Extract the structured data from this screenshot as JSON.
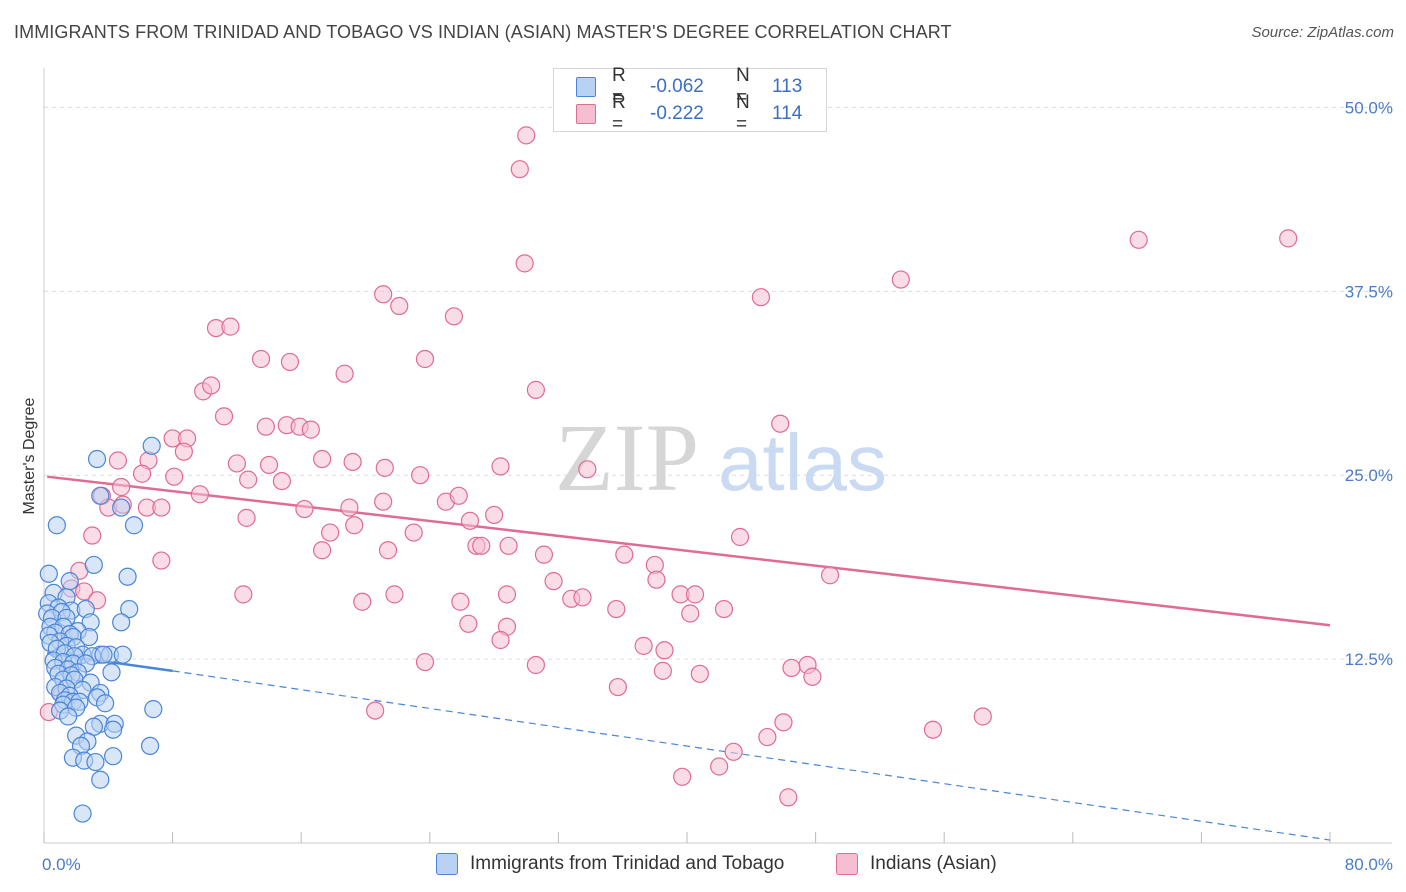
{
  "title": "IMMIGRANTS FROM TRINIDAD AND TOBAGO VS INDIAN (ASIAN) MASTER'S DEGREE CORRELATION CHART",
  "source": "Source: ZipAtlas.com",
  "watermark": {
    "zip": "ZIP",
    "atlas": "atlas"
  },
  "colors": {
    "blue": "#4a86d8",
    "blue_fill": "#b9d2f3",
    "pink": "#e06b93",
    "pink_fill": "#f5bfd1",
    "axis_text": "#4a7cc9",
    "grid": "#dddddd"
  },
  "legend": {
    "rows": [
      {
        "r_label": "R =",
        "r_value": "-0.062",
        "n_label": "N =",
        "n_value": "113"
      },
      {
        "r_label": "R =",
        "r_value": "-0.222",
        "n_label": "N =",
        "n_value": "114"
      }
    ]
  },
  "chart_data": {
    "type": "scatter",
    "title": "IMMIGRANTS FROM TRINIDAD AND TOBAGO VS INDIAN (ASIAN) MASTER'S DEGREE CORRELATION CHART",
    "xlabel": "",
    "ylabel": "Master's Degree",
    "xlim": [
      0,
      80
    ],
    "ylim": [
      0,
      50
    ],
    "x_tick_labels": [
      "0.0%",
      "80.0%"
    ],
    "y_ticks": [
      12.5,
      25.0,
      37.5,
      50.0
    ],
    "y_tick_labels": [
      "12.5%",
      "25.0%",
      "37.5%",
      "50.0%"
    ],
    "grid": true,
    "series": [
      {
        "name": "Immigrants from Trinidad and Tobago",
        "color": "blue",
        "trend": {
          "x1": 0.2,
          "y1": 12.9,
          "x2": 8.0,
          "y2": 11.7,
          "dash_to_x": 80.0,
          "dash_to_y": 0.2
        },
        "points": [
          [
            3.3,
            26.1
          ],
          [
            6.7,
            27.0
          ],
          [
            0.8,
            21.6
          ],
          [
            3.5,
            23.6
          ],
          [
            4.8,
            22.8
          ],
          [
            5.6,
            21.6
          ],
          [
            0.3,
            18.3
          ],
          [
            3.1,
            18.9
          ],
          [
            1.6,
            17.8
          ],
          [
            5.2,
            18.1
          ],
          [
            0.6,
            17.0
          ],
          [
            1.4,
            16.7
          ],
          [
            0.3,
            16.3
          ],
          [
            0.9,
            16.0
          ],
          [
            1.7,
            15.8
          ],
          [
            2.6,
            15.9
          ],
          [
            5.3,
            15.9
          ],
          [
            0.2,
            15.6
          ],
          [
            1.1,
            15.7
          ],
          [
            0.5,
            15.3
          ],
          [
            1.4,
            15.3
          ],
          [
            2.9,
            15.0
          ],
          [
            4.8,
            15.0
          ],
          [
            0.4,
            14.7
          ],
          [
            1.2,
            14.7
          ],
          [
            2.1,
            14.4
          ],
          [
            0.7,
            14.3
          ],
          [
            1.6,
            14.2
          ],
          [
            0.3,
            14.1
          ],
          [
            1.8,
            14.0
          ],
          [
            2.8,
            14.0
          ],
          [
            1.0,
            13.7
          ],
          [
            0.4,
            13.6
          ],
          [
            1.4,
            13.4
          ],
          [
            2.0,
            13.3
          ],
          [
            0.8,
            13.2
          ],
          [
            1.3,
            12.9
          ],
          [
            2.4,
            12.8
          ],
          [
            3.5,
            12.8
          ],
          [
            4.1,
            12.8
          ],
          [
            4.9,
            12.8
          ],
          [
            1.9,
            12.7
          ],
          [
            3.0,
            12.7
          ],
          [
            3.7,
            12.8
          ],
          [
            0.6,
            12.4
          ],
          [
            1.2,
            12.3
          ],
          [
            1.8,
            12.2
          ],
          [
            2.6,
            12.2
          ],
          [
            0.7,
            11.9
          ],
          [
            1.5,
            11.8
          ],
          [
            2.1,
            11.6
          ],
          [
            0.9,
            11.5
          ],
          [
            1.7,
            11.4
          ],
          [
            4.2,
            11.6
          ],
          [
            1.2,
            11.1
          ],
          [
            1.9,
            11.1
          ],
          [
            2.9,
            10.9
          ],
          [
            0.7,
            10.6
          ],
          [
            1.4,
            10.5
          ],
          [
            2.4,
            10.4
          ],
          [
            1.0,
            10.2
          ],
          [
            3.5,
            10.2
          ],
          [
            1.6,
            10.0
          ],
          [
            3.3,
            9.9
          ],
          [
            1.3,
            9.7
          ],
          [
            1.8,
            9.6
          ],
          [
            2.2,
            9.6
          ],
          [
            3.8,
            9.5
          ],
          [
            1.2,
            9.4
          ],
          [
            2.0,
            9.2
          ],
          [
            6.8,
            9.1
          ],
          [
            1.0,
            9.0
          ],
          [
            1.5,
            8.6
          ],
          [
            3.5,
            8.1
          ],
          [
            4.4,
            8.1
          ],
          [
            3.1,
            7.9
          ],
          [
            4.3,
            7.7
          ],
          [
            2.0,
            7.3
          ],
          [
            2.7,
            6.9
          ],
          [
            2.3,
            6.6
          ],
          [
            6.6,
            6.6
          ],
          [
            4.3,
            5.9
          ],
          [
            1.8,
            5.8
          ],
          [
            2.5,
            5.6
          ],
          [
            3.2,
            5.5
          ],
          [
            3.5,
            4.3
          ],
          [
            2.4,
            2.0
          ]
        ]
      },
      {
        "name": "Indians (Asian)",
        "color": "pink",
        "trend": {
          "x1": 0.2,
          "y1": 24.9,
          "x2": 80.0,
          "y2": 14.8
        },
        "points": [
          [
            30.0,
            48.1
          ],
          [
            29.6,
            45.8
          ],
          [
            68.1,
            41.0
          ],
          [
            77.4,
            41.1
          ],
          [
            29.9,
            39.4
          ],
          [
            53.3,
            38.3
          ],
          [
            21.1,
            37.3
          ],
          [
            22.1,
            36.5
          ],
          [
            25.5,
            35.8
          ],
          [
            10.7,
            35.0
          ],
          [
            11.6,
            35.1
          ],
          [
            13.5,
            32.9
          ],
          [
            15.3,
            32.7
          ],
          [
            23.7,
            32.9
          ],
          [
            18.7,
            31.9
          ],
          [
            9.9,
            30.7
          ],
          [
            10.4,
            31.1
          ],
          [
            30.6,
            30.8
          ],
          [
            11.2,
            29.0
          ],
          [
            13.8,
            28.3
          ],
          [
            15.1,
            28.4
          ],
          [
            15.9,
            28.3
          ],
          [
            16.6,
            28.1
          ],
          [
            45.8,
            28.5
          ],
          [
            8.0,
            27.5
          ],
          [
            8.9,
            27.5
          ],
          [
            44.6,
            37.1
          ],
          [
            8.7,
            26.6
          ],
          [
            4.6,
            26.0
          ],
          [
            6.5,
            26.0
          ],
          [
            12.0,
            25.8
          ],
          [
            14.0,
            25.7
          ],
          [
            17.3,
            26.1
          ],
          [
            19.2,
            25.9
          ],
          [
            21.2,
            25.5
          ],
          [
            28.4,
            25.6
          ],
          [
            33.8,
            25.4
          ],
          [
            6.1,
            25.1
          ],
          [
            8.1,
            24.9
          ],
          [
            12.7,
            24.7
          ],
          [
            14.8,
            24.6
          ],
          [
            23.4,
            25.0
          ],
          [
            4.8,
            24.2
          ],
          [
            9.7,
            23.7
          ],
          [
            3.6,
            23.6
          ],
          [
            4.0,
            22.8
          ],
          [
            4.9,
            23.0
          ],
          [
            6.4,
            22.8
          ],
          [
            7.3,
            22.8
          ],
          [
            16.2,
            22.7
          ],
          [
            19.0,
            22.8
          ],
          [
            21.1,
            23.2
          ],
          [
            25.0,
            23.2
          ],
          [
            25.8,
            23.6
          ],
          [
            28.0,
            22.3
          ],
          [
            12.6,
            22.1
          ],
          [
            26.5,
            21.9
          ],
          [
            19.3,
            21.6
          ],
          [
            17.8,
            21.1
          ],
          [
            23.0,
            21.1
          ],
          [
            3.0,
            20.9
          ],
          [
            43.3,
            20.8
          ],
          [
            26.9,
            20.2
          ],
          [
            27.2,
            20.2
          ],
          [
            28.9,
            20.2
          ],
          [
            21.4,
            19.9
          ],
          [
            17.3,
            19.9
          ],
          [
            31.1,
            19.6
          ],
          [
            36.1,
            19.6
          ],
          [
            7.3,
            19.2
          ],
          [
            38.0,
            18.9
          ],
          [
            2.2,
            18.5
          ],
          [
            48.9,
            18.2
          ],
          [
            31.7,
            17.8
          ],
          [
            38.1,
            17.9
          ],
          [
            1.7,
            17.3
          ],
          [
            2.5,
            17.1
          ],
          [
            12.4,
            16.9
          ],
          [
            21.8,
            16.9
          ],
          [
            28.8,
            16.9
          ],
          [
            32.8,
            16.6
          ],
          [
            33.5,
            16.7
          ],
          [
            39.6,
            16.9
          ],
          [
            40.5,
            16.9
          ],
          [
            3.3,
            16.5
          ],
          [
            19.8,
            16.4
          ],
          [
            25.9,
            16.4
          ],
          [
            42.3,
            15.9
          ],
          [
            35.6,
            15.9
          ],
          [
            40.2,
            15.6
          ],
          [
            26.4,
            14.9
          ],
          [
            28.8,
            14.7
          ],
          [
            28.4,
            13.8
          ],
          [
            37.3,
            13.4
          ],
          [
            38.6,
            13.1
          ],
          [
            23.7,
            12.3
          ],
          [
            30.6,
            12.1
          ],
          [
            47.5,
            12.1
          ],
          [
            46.5,
            11.9
          ],
          [
            38.5,
            11.7
          ],
          [
            40.8,
            11.5
          ],
          [
            47.8,
            11.3
          ],
          [
            35.7,
            10.6
          ],
          [
            1.1,
            10.1
          ],
          [
            0.3,
            8.9
          ],
          [
            20.6,
            9.0
          ],
          [
            46.0,
            8.2
          ],
          [
            58.4,
            8.6
          ],
          [
            55.3,
            7.7
          ],
          [
            45.0,
            7.2
          ],
          [
            42.9,
            6.2
          ],
          [
            42.0,
            5.2
          ],
          [
            39.7,
            4.5
          ],
          [
            46.3,
            3.1
          ]
        ]
      }
    ]
  },
  "bottom_legend": {
    "items": [
      {
        "label": "Immigrants from Trinidad and Tobago"
      },
      {
        "label": "Indians (Asian)"
      }
    ]
  }
}
